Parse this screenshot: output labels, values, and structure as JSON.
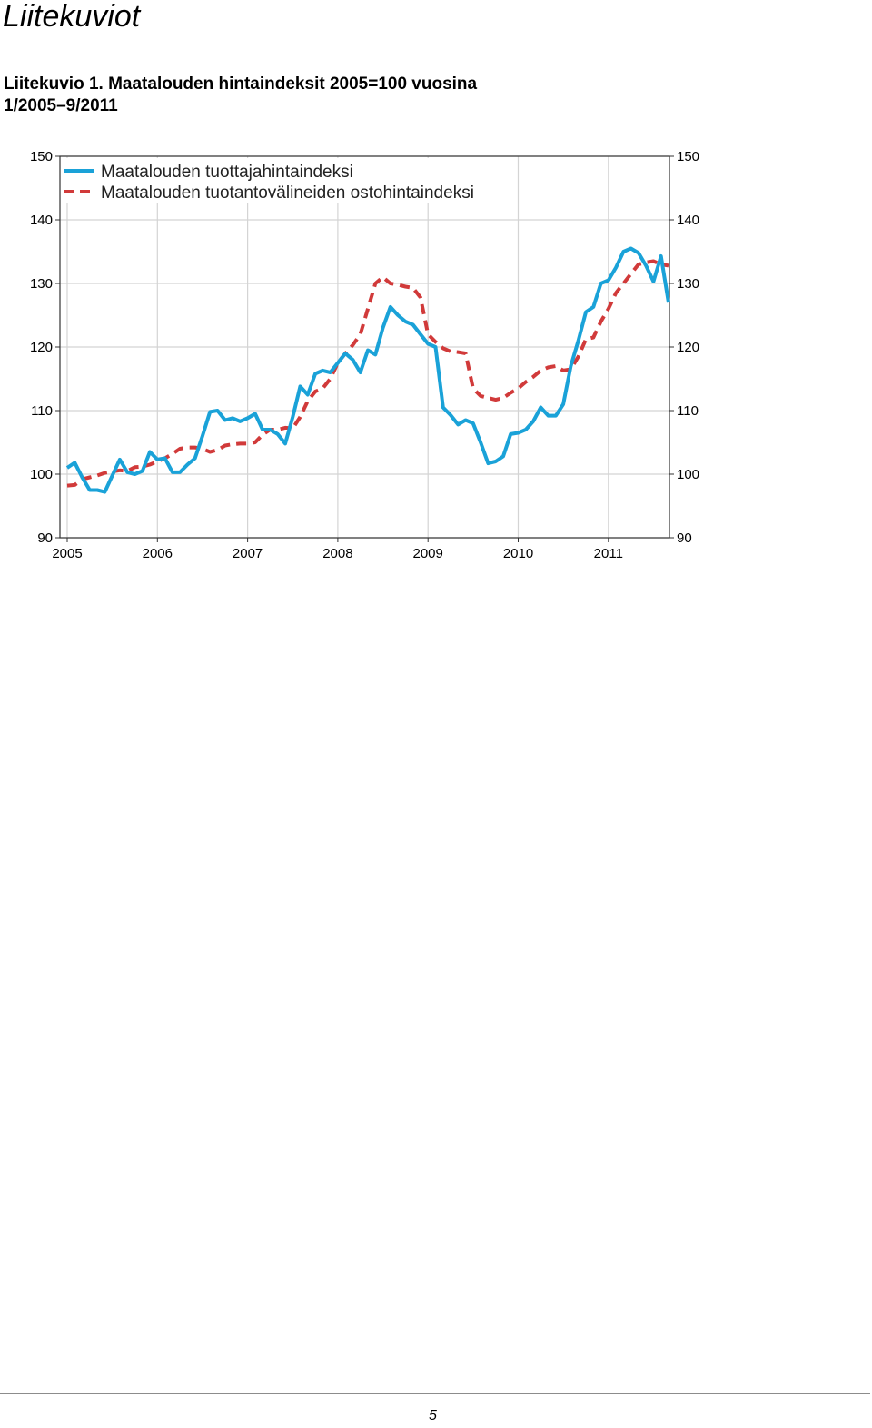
{
  "header": {
    "section_title": "Liitekuviot",
    "caption_line1": "Liitekuvio 1. Maatalouden hintaindeksit 2005=100 vuosina",
    "caption_line2": "1/2005–9/2011"
  },
  "footer": {
    "page_number": "5"
  },
  "chart_data": {
    "type": "line",
    "title": "",
    "xlabel": "",
    "ylabel": "",
    "ylim": [
      90,
      150
    ],
    "yticks": [
      90,
      100,
      110,
      120,
      130,
      140,
      150
    ],
    "xlim": [
      "2005-01",
      "2011-09"
    ],
    "xticks": [
      "2005",
      "2006",
      "2007",
      "2008",
      "2009",
      "2010",
      "2011"
    ],
    "grid": true,
    "legend_position": "top-left",
    "series": [
      {
        "name": "Maatalouden tuottajahintaindeksi",
        "color": "#1aa2d8",
        "style": "solid",
        "values": [
          101,
          101.8,
          99.5,
          97.5,
          97.5,
          97.2,
          99.8,
          102.3,
          100.3,
          100,
          100.5,
          103.5,
          102.3,
          102.5,
          100.3,
          100.3,
          101.5,
          102.5,
          106,
          109.8,
          110,
          108.5,
          108.8,
          108.3,
          108.8,
          109.5,
          107,
          107,
          106.3,
          104.8,
          109,
          113.8,
          112.5,
          115.8,
          116.3,
          116,
          117.5,
          119,
          118,
          116,
          119.5,
          118.8,
          123,
          126.3,
          125,
          124,
          123.5,
          122,
          120.5,
          120,
          110.5,
          109.3,
          107.8,
          108.5,
          108,
          105,
          101.7,
          102,
          102.8,
          106.3,
          106.5,
          107,
          108.3,
          110.5,
          109.2,
          109.2,
          111,
          117,
          121,
          125.5,
          126.3,
          130,
          130.5,
          132.5,
          135,
          135.5,
          134.8,
          132.8,
          130.3,
          134.3,
          127
        ]
      },
      {
        "name": "Maatalouden tuotantovälineiden ostohintaindeksi",
        "color": "#d13a3a",
        "style": "dashed",
        "values": [
          98.2,
          98.3,
          99.2,
          99.5,
          99.8,
          100.2,
          100.4,
          100.6,
          100.5,
          101.1,
          101.2,
          101.5,
          102,
          102.5,
          103.2,
          104,
          104.2,
          104.2,
          104,
          103.5,
          103.8,
          104.5,
          104.7,
          104.8,
          104.8,
          105,
          106.2,
          107,
          107,
          107.3,
          107.2,
          109,
          111.5,
          113,
          113.5,
          115,
          117.5,
          119,
          120.3,
          122,
          126,
          130,
          131,
          130,
          129.8,
          129.5,
          129.3,
          127.8,
          122,
          120.8,
          119.8,
          119.3,
          119.2,
          119,
          113.5,
          112.3,
          112,
          111.7,
          112,
          112.8,
          113.5,
          114.5,
          115.3,
          116.3,
          116.8,
          117,
          116.3,
          116.5,
          118.5,
          121.2,
          121.5,
          124,
          126,
          128.5,
          130,
          131.5,
          133,
          133.3,
          133.5,
          133,
          132.8
        ]
      }
    ]
  }
}
